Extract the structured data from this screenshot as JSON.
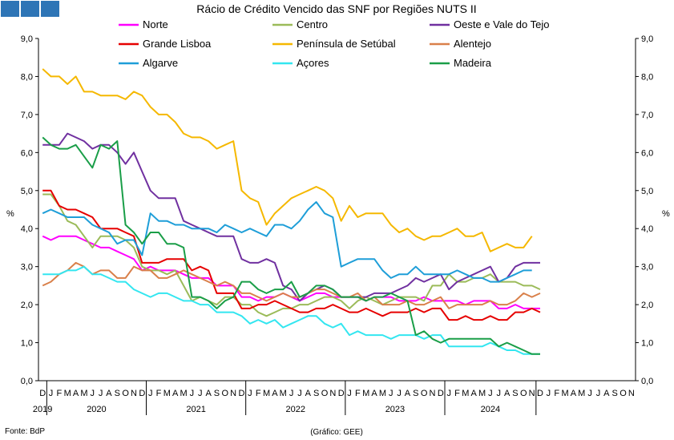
{
  "logo": {
    "squares": 3,
    "color": "#2e75b6"
  },
  "chart_data": {
    "type": "line",
    "title": "Rácio de Crédito Vencido das SNF por Regiões NUTS II",
    "ylabel_left": "%",
    "ylabel_right": "%",
    "ylim": [
      0,
      9
    ],
    "yticks": [
      "0,0",
      "1,0",
      "2,0",
      "3,0",
      "4,0",
      "5,0",
      "6,0",
      "7,0",
      "8,0",
      "9,0"
    ],
    "grid": false,
    "legend_placement": "top",
    "month_labels": [
      "D",
      "J",
      "F",
      "M",
      "A",
      "M",
      "J",
      "J",
      "A",
      "S",
      "O",
      "N",
      "D",
      "J",
      "F",
      "M",
      "A",
      "M",
      "J",
      "J",
      "A",
      "S",
      "O",
      "N",
      "D",
      "J",
      "F",
      "M",
      "A",
      "M",
      "J",
      "J",
      "A",
      "S",
      "O",
      "N",
      "D",
      "J",
      "F",
      "M",
      "A",
      "M",
      "J",
      "J",
      "A",
      "S",
      "O",
      "N",
      "D",
      "J",
      "F",
      "M",
      "A",
      "M",
      "J",
      "J",
      "A",
      "S",
      "O",
      "N",
      "D",
      "J",
      "F",
      "M",
      "A",
      "M",
      "J",
      "J",
      "A",
      "S",
      "O",
      "N"
    ],
    "years": [
      {
        "label": "2019",
        "start": 0,
        "end": 0
      },
      {
        "label": "2020",
        "start": 1,
        "end": 12
      },
      {
        "label": "2021",
        "start": 13,
        "end": 24
      },
      {
        "label": "2022",
        "start": 25,
        "end": 36
      },
      {
        "label": "2023",
        "start": 37,
        "end": 48
      },
      {
        "label": "2024",
        "start": 49,
        "end": 59
      }
    ],
    "series": [
      {
        "name": "Norte",
        "color": "#ff00ff",
        "values": [
          3.8,
          3.7,
          3.8,
          3.8,
          3.8,
          3.7,
          3.6,
          3.5,
          3.5,
          3.4,
          3.3,
          3.2,
          2.9,
          3.0,
          2.9,
          2.9,
          2.9,
          2.8,
          2.7,
          2.7,
          2.7,
          2.5,
          2.5,
          2.5,
          2.2,
          2.2,
          2.1,
          2.2,
          2.2,
          2.3,
          2.2,
          2.1,
          2.2,
          2.3,
          2.3,
          2.2,
          2.2,
          2.2,
          2.2,
          2.1,
          2.2,
          2.2,
          2.2,
          2.1,
          2.1,
          2.1,
          2.2,
          2.1,
          2.1,
          2.1,
          2.1,
          2.0,
          2.1,
          2.1,
          2.1,
          1.9,
          1.9,
          2.0,
          1.9,
          1.9,
          1.9
        ]
      },
      {
        "name": "Centro",
        "color": "#9bbb59",
        "values": [
          4.9,
          4.9,
          4.6,
          4.2,
          4.1,
          3.8,
          3.5,
          3.8,
          3.8,
          3.8,
          3.7,
          3.5,
          3.0,
          2.9,
          2.9,
          2.8,
          2.9,
          2.5,
          2.1,
          2.2,
          2.1,
          2.0,
          2.2,
          2.2,
          2.0,
          2.0,
          1.8,
          1.7,
          1.8,
          1.9,
          1.9,
          2.0,
          2.0,
          2.1,
          2.2,
          2.2,
          2.1,
          1.9,
          2.1,
          2.2,
          2.1,
          2.0,
          2.1,
          2.2,
          2.2,
          2.2,
          2.1,
          2.5,
          2.5,
          2.8,
          2.6,
          2.6,
          2.7,
          2.7,
          2.8,
          2.6,
          2.6,
          2.6,
          2.5,
          2.5,
          2.4
        ]
      },
      {
        "name": "Oeste e Vale do Tejo",
        "color": "#7030a0",
        "values": [
          6.2,
          6.2,
          6.2,
          6.5,
          6.4,
          6.3,
          6.1,
          6.2,
          6.2,
          6.0,
          5.7,
          6.0,
          5.5,
          5.0,
          4.8,
          4.8,
          4.8,
          4.2,
          4.1,
          4.0,
          3.9,
          3.8,
          3.8,
          3.8,
          3.2,
          3.1,
          3.1,
          3.2,
          3.1,
          2.5,
          2.4,
          2.1,
          2.3,
          2.4,
          2.5,
          2.4,
          2.2,
          2.2,
          2.2,
          2.2,
          2.3,
          2.3,
          2.3,
          2.4,
          2.5,
          2.7,
          2.6,
          2.7,
          2.8,
          2.4,
          2.6,
          2.7,
          2.8,
          2.9,
          3.0,
          2.6,
          2.7,
          3.0,
          3.1,
          3.1,
          3.1
        ]
      },
      {
        "name": "Grande Lisboa",
        "color": "#e60000",
        "values": [
          5.0,
          5.0,
          4.6,
          4.5,
          4.5,
          4.4,
          4.3,
          4.0,
          4.0,
          4.0,
          3.9,
          3.8,
          3.1,
          3.1,
          3.1,
          3.2,
          3.2,
          3.2,
          2.9,
          3.0,
          2.9,
          2.3,
          2.3,
          2.3,
          1.9,
          1.9,
          2.0,
          2.0,
          2.1,
          2.0,
          1.9,
          1.8,
          1.8,
          1.9,
          1.9,
          2.0,
          1.9,
          1.8,
          1.8,
          1.9,
          1.8,
          1.7,
          1.8,
          1.8,
          1.8,
          1.9,
          1.8,
          1.9,
          1.9,
          1.6,
          1.6,
          1.7,
          1.6,
          1.6,
          1.7,
          1.6,
          1.6,
          1.8,
          1.8,
          1.9,
          1.8
        ]
      },
      {
        "name": "Península de Setúbal",
        "color": "#f5b800",
        "values": [
          8.2,
          8.0,
          8.0,
          7.8,
          8.0,
          7.6,
          7.6,
          7.5,
          7.5,
          7.5,
          7.4,
          7.6,
          7.5,
          7.2,
          7.0,
          7.0,
          6.8,
          6.5,
          6.4,
          6.4,
          6.3,
          6.1,
          6.2,
          6.3,
          5.0,
          4.8,
          4.7,
          4.1,
          4.4,
          4.6,
          4.8,
          4.9,
          5.0,
          5.1,
          5.0,
          4.8,
          4.2,
          4.6,
          4.3,
          4.4,
          4.4,
          4.4,
          4.1,
          3.9,
          4.0,
          3.8,
          3.7,
          3.8,
          3.8,
          3.9,
          4.0,
          3.8,
          3.8,
          3.9,
          3.4,
          3.5,
          3.6,
          3.5,
          3.5,
          3.8
        ]
      },
      {
        "name": "Alentejo",
        "color": "#d9804a",
        "values": [
          2.5,
          2.6,
          2.8,
          2.9,
          3.1,
          3.0,
          2.8,
          2.9,
          2.9,
          2.7,
          2.7,
          3.0,
          2.9,
          2.9,
          2.7,
          2.7,
          2.8,
          2.9,
          2.8,
          2.7,
          2.6,
          2.5,
          2.6,
          2.5,
          2.3,
          2.3,
          2.2,
          2.1,
          2.2,
          2.3,
          2.2,
          2.2,
          2.3,
          2.4,
          2.4,
          2.3,
          2.2,
          2.2,
          2.3,
          2.1,
          2.2,
          2.0,
          2.0,
          2.0,
          2.1,
          2.0,
          2.0,
          2.1,
          2.2,
          1.9,
          2.0,
          2.0,
          2.0,
          2.0,
          2.1,
          2.0,
          2.0,
          2.1,
          2.3,
          2.2,
          2.3
        ]
      },
      {
        "name": "Algarve",
        "color": "#1e9ed8",
        "values": [
          4.4,
          4.5,
          4.4,
          4.3,
          4.3,
          4.3,
          4.1,
          4.0,
          3.9,
          3.6,
          3.7,
          3.7,
          3.3,
          4.4,
          4.2,
          4.2,
          4.1,
          4.1,
          4.0,
          4.0,
          4.0,
          3.9,
          4.1,
          4.0,
          3.9,
          4.0,
          3.9,
          3.8,
          4.1,
          4.1,
          4.0,
          4.2,
          4.5,
          4.7,
          4.4,
          4.3,
          3.0,
          3.1,
          3.2,
          3.2,
          3.2,
          2.9,
          2.7,
          2.8,
          2.8,
          3.0,
          2.8,
          2.8,
          2.8,
          2.8,
          2.9,
          2.8,
          2.7,
          2.7,
          2.6,
          2.6,
          2.7,
          2.8,
          2.9,
          2.9
        ]
      },
      {
        "name": "Açores",
        "color": "#33e6f0",
        "values": [
          2.8,
          2.8,
          2.8,
          2.9,
          2.9,
          3.0,
          2.8,
          2.8,
          2.7,
          2.6,
          2.6,
          2.4,
          2.3,
          2.2,
          2.3,
          2.3,
          2.2,
          2.1,
          2.1,
          2.0,
          2.0,
          1.8,
          1.8,
          1.8,
          1.7,
          1.5,
          1.6,
          1.5,
          1.6,
          1.4,
          1.5,
          1.6,
          1.7,
          1.7,
          1.5,
          1.4,
          1.5,
          1.2,
          1.3,
          1.2,
          1.2,
          1.2,
          1.1,
          1.2,
          1.2,
          1.2,
          1.1,
          1.2,
          1.2,
          0.9,
          0.9,
          0.9,
          0.9,
          0.9,
          1.0,
          0.9,
          0.8,
          0.8,
          0.7,
          0.7,
          0.7
        ]
      },
      {
        "name": "Madeira",
        "color": "#1a9e48",
        "values": [
          6.4,
          6.2,
          6.1,
          6.1,
          6.2,
          5.9,
          5.6,
          6.2,
          6.1,
          6.3,
          4.1,
          3.9,
          3.6,
          3.9,
          3.9,
          3.6,
          3.6,
          3.5,
          2.2,
          2.2,
          2.1,
          1.9,
          2.1,
          2.2,
          2.6,
          2.6,
          2.4,
          2.3,
          2.4,
          2.4,
          2.6,
          2.2,
          2.3,
          2.5,
          2.5,
          2.4,
          2.2,
          2.2,
          2.2,
          2.1,
          2.2,
          2.2,
          2.3,
          2.2,
          2.1,
          1.2,
          1.3,
          1.1,
          1.0,
          1.1,
          1.1,
          1.1,
          1.1,
          1.1,
          1.1,
          0.9,
          1.0,
          0.9,
          0.8,
          0.7,
          0.7
        ]
      }
    ]
  },
  "footer": {
    "source": "Fonte: BdP",
    "credit": "(Gráfico: GEE)"
  }
}
